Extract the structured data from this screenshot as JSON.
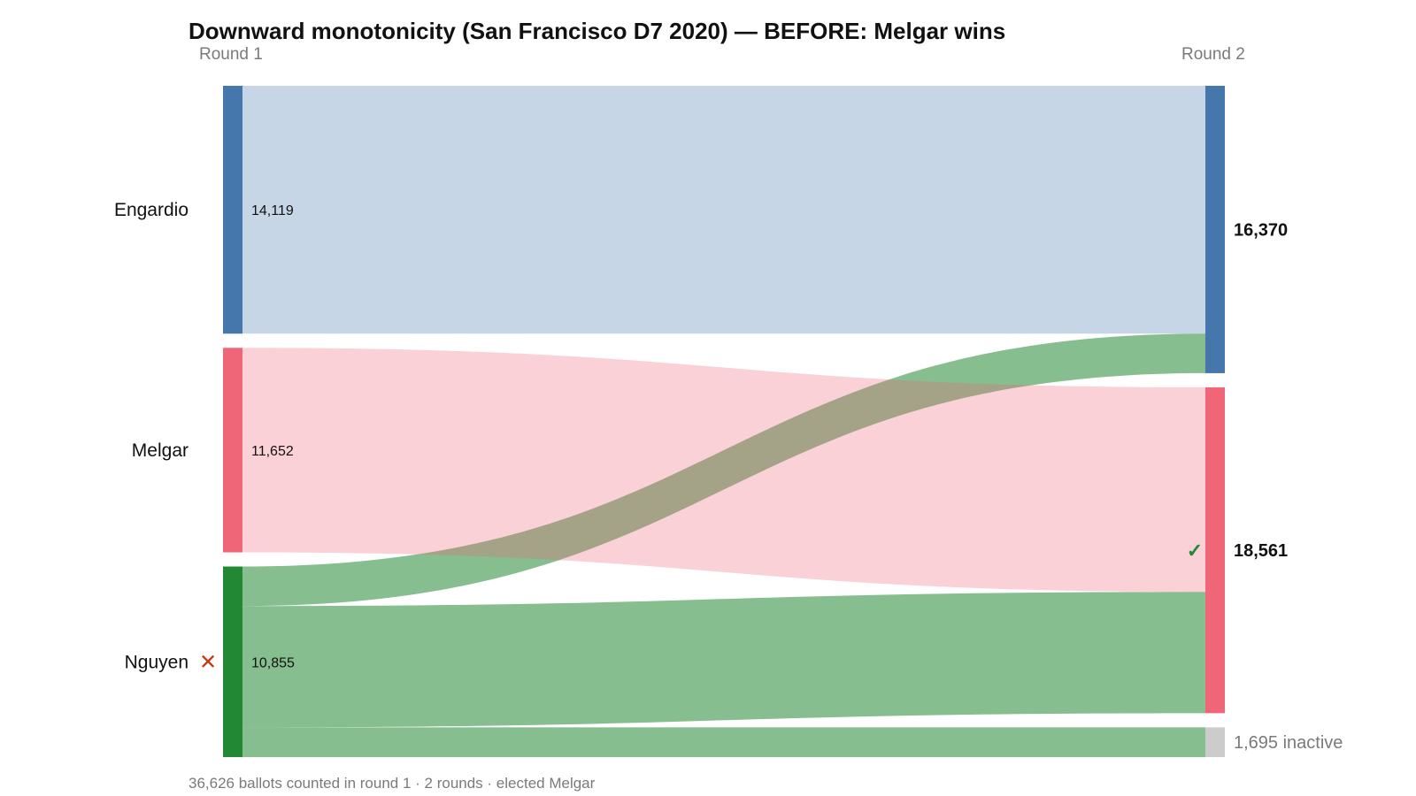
{
  "chart_data": {
    "type": "sankey",
    "title": "Downward monotonicity (San Francisco D7 2020) — BEFORE: Melgar wins",
    "rounds": [
      "Round 1",
      "Round 2"
    ],
    "colors": {
      "Engardio": "#4577ac",
      "Melgar": "#ee6677",
      "Nguyen": "#228833",
      "inactive": "#cccccc"
    },
    "round1": [
      {
        "candidate": "Engardio",
        "label": "Engardio",
        "value": 14119,
        "value_label": "14,119",
        "eliminated": false
      },
      {
        "candidate": "Melgar",
        "label": "Melgar",
        "value": 11652,
        "value_label": "11,652",
        "eliminated": false
      },
      {
        "candidate": "Nguyen",
        "label": "Nguyen",
        "value": 10855,
        "value_label": "10,855",
        "eliminated": true
      }
    ],
    "round2": [
      {
        "candidate": "Engardio",
        "value": 16370,
        "value_label": "16,370",
        "winner": false
      },
      {
        "candidate": "Melgar",
        "value": 18561,
        "value_label": "18,561",
        "winner": true
      },
      {
        "candidate": "inactive",
        "value": 1695,
        "value_label": "1,695 inactive"
      }
    ],
    "flows": [
      {
        "from": "Engardio",
        "to": "Engardio",
        "value": 14119
      },
      {
        "from": "Nguyen",
        "to": "Engardio",
        "value": 2251
      },
      {
        "from": "Melgar",
        "to": "Melgar",
        "value": 11652
      },
      {
        "from": "Nguyen",
        "to": "Melgar",
        "value": 6909
      },
      {
        "from": "Nguyen",
        "to": "inactive",
        "value": 1695
      }
    ],
    "eliminated_marker": "✕",
    "winner_marker": "✓",
    "footer": "36,626 ballots counted in round 1 · 2 rounds · elected Melgar"
  }
}
